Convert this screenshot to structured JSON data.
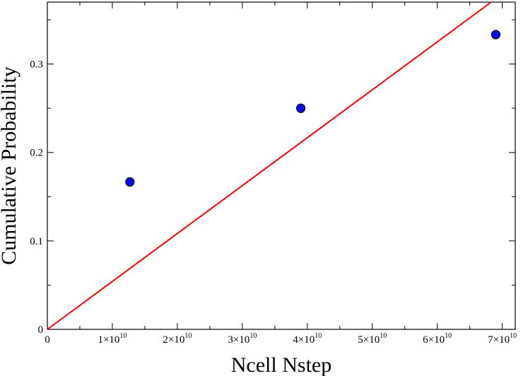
{
  "chart_data": {
    "type": "scatter",
    "title": "",
    "xlabel": "Ncell Nstep",
    "ylabel": "Cumulative Probability",
    "xlim": [
      0,
      72000000000
    ],
    "ylim": [
      0,
      0.37
    ],
    "grid": false,
    "legend": "none",
    "x_ticks": [
      {
        "value": 0,
        "label": "0"
      },
      {
        "value": 10000000000,
        "mantissa": "1",
        "base": "×10",
        "exp": "10"
      },
      {
        "value": 20000000000,
        "mantissa": "2",
        "base": "×10",
        "exp": "10"
      },
      {
        "value": 30000000000,
        "mantissa": "3",
        "base": "×10",
        "exp": "10"
      },
      {
        "value": 40000000000,
        "mantissa": "4",
        "base": "×10",
        "exp": "10"
      },
      {
        "value": 50000000000,
        "mantissa": "5",
        "base": "×10",
        "exp": "10"
      },
      {
        "value": 60000000000,
        "mantissa": "6",
        "base": "×10",
        "exp": "10"
      },
      {
        "value": 70000000000,
        "mantissa": "7",
        "base": "×10",
        "exp": "10"
      }
    ],
    "y_ticks": [
      {
        "value": 0,
        "label": "0"
      },
      {
        "value": 0.1,
        "label": "0.1"
      },
      {
        "value": 0.2,
        "label": "0.2"
      },
      {
        "value": 0.3,
        "label": "0.3"
      }
    ],
    "series": [
      {
        "type": "scatter",
        "color": "#0000ff",
        "edge_color": "#000000",
        "points": [
          {
            "x": 12700000000,
            "y": 0.1667
          },
          {
            "x": 39000000000,
            "y": 0.25
          },
          {
            "x": 69000000000,
            "y": 0.3333
          }
        ]
      },
      {
        "type": "line",
        "color": "#ff0000",
        "points": [
          {
            "x": 0,
            "y": 0
          },
          {
            "x": 68300000000,
            "y": 0.37
          }
        ]
      }
    ]
  }
}
